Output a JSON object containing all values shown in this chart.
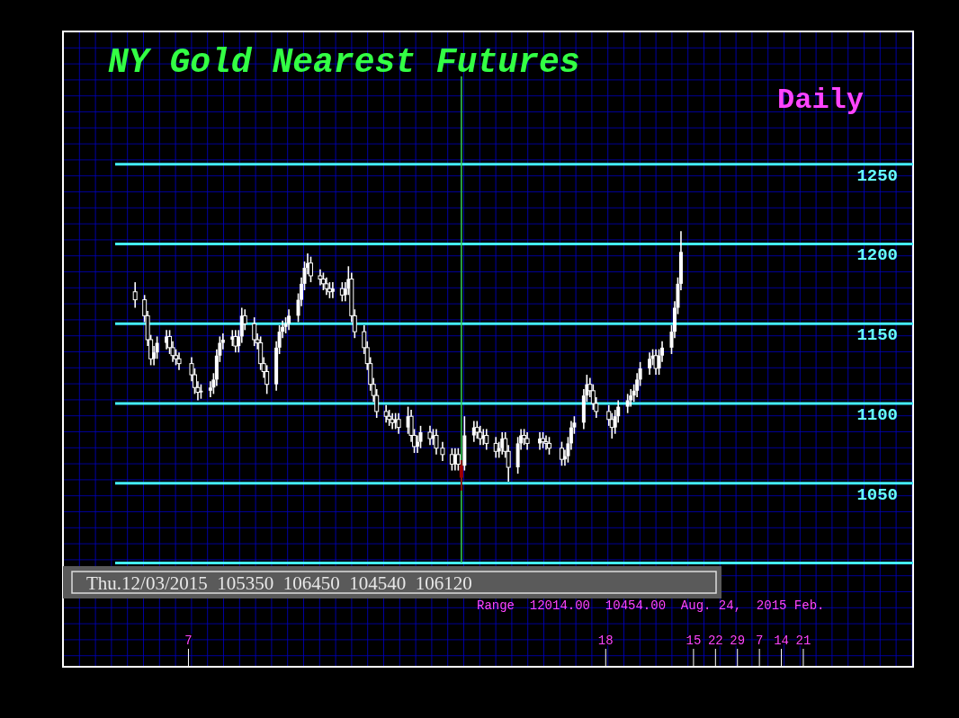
{
  "chart_data": {
    "type": "candlestick",
    "title": "NY Gold Nearest Futures",
    "subtitle": "Daily",
    "x": [
      "2015-08-21",
      "2015-08-24",
      "2015-08-25",
      "2015-08-26",
      "2015-08-27",
      "2015-08-28",
      "2015-08-31",
      "2015-09-01",
      "2015-09-02",
      "2015-09-03",
      "2015-09-04",
      "2015-09-08",
      "2015-09-09",
      "2015-09-10",
      "2015-09-11",
      "2015-09-14",
      "2015-09-15",
      "2015-09-16",
      "2015-09-17",
      "2015-09-18",
      "2015-09-21",
      "2015-09-22",
      "2015-09-23",
      "2015-09-24",
      "2015-09-25",
      "2015-09-28",
      "2015-09-29",
      "2015-09-30",
      "2015-10-01",
      "2015-10-02",
      "2015-10-05",
      "2015-10-06",
      "2015-10-07",
      "2015-10-08",
      "2015-10-09",
      "2015-10-12",
      "2015-10-13",
      "2015-10-14",
      "2015-10-15",
      "2015-10-16",
      "2015-10-19",
      "2015-10-20",
      "2015-10-21",
      "2015-10-22",
      "2015-10-23",
      "2015-10-26",
      "2015-10-27",
      "2015-10-28",
      "2015-10-29",
      "2015-10-30",
      "2015-11-02",
      "2015-11-03",
      "2015-11-04",
      "2015-11-05",
      "2015-11-06",
      "2015-11-09",
      "2015-11-10",
      "2015-11-11",
      "2015-11-12",
      "2015-11-13",
      "2015-11-16",
      "2015-11-17",
      "2015-11-18",
      "2015-11-19",
      "2015-11-20",
      "2015-11-23",
      "2015-11-24",
      "2015-11-25",
      "2015-11-27",
      "2015-11-30",
      "2015-12-01",
      "2015-12-02",
      "2015-12-03",
      "2015-12-04",
      "2015-12-07",
      "2015-12-08",
      "2015-12-09",
      "2015-12-10",
      "2015-12-11",
      "2015-12-14",
      "2015-12-15",
      "2015-12-16",
      "2015-12-17",
      "2015-12-18",
      "2015-12-21",
      "2015-12-22",
      "2015-12-23",
      "2015-12-24",
      "2015-12-28",
      "2015-12-29",
      "2015-12-30",
      "2015-12-31",
      "2016-01-04",
      "2016-01-05",
      "2016-01-06",
      "2016-01-07",
      "2016-01-08",
      "2016-01-11",
      "2016-01-12",
      "2016-01-13",
      "2016-01-14",
      "2016-01-15",
      "2016-01-19",
      "2016-01-20",
      "2016-01-21",
      "2016-01-22",
      "2016-01-25",
      "2016-01-26",
      "2016-01-27",
      "2016-01-28",
      "2016-01-29",
      "2016-02-01",
      "2016-02-02",
      "2016-02-03",
      "2016-02-04",
      "2016-02-05",
      "2016-02-08",
      "2016-02-09",
      "2016-02-10",
      "2016-02-11"
    ],
    "xlim": [
      "2015-07-29",
      "2016-04-25"
    ],
    "xticks": [
      {
        "value": "2015-09-07",
        "label": "7"
      },
      {
        "value": "2016-01-18",
        "label": "18"
      },
      {
        "value": "2016-02-15",
        "label": "15"
      },
      {
        "value": "2016-02-22",
        "label": "22"
      },
      {
        "value": "2016-02-29",
        "label": "29"
      },
      {
        "value": "2016-03-07",
        "label": "7"
      },
      {
        "value": "2016-03-14",
        "label": "14"
      },
      {
        "value": "2016-03-21",
        "label": "21"
      }
    ],
    "ref_lines": [
      {
        "axis": "x",
        "value": "2015-12-03",
        "color": "#33cc55"
      }
    ],
    "ohlc": [
      [
        1170,
        1176,
        1160,
        1165
      ],
      [
        1165,
        1168,
        1151,
        1155
      ],
      [
        1155,
        1158,
        1136,
        1140
      ],
      [
        1140,
        1143,
        1124,
        1128
      ],
      [
        1128,
        1136,
        1124,
        1132
      ],
      [
        1132,
        1142,
        1128,
        1138
      ],
      [
        1138,
        1146,
        1134,
        1142
      ],
      [
        1142,
        1146,
        1131,
        1135
      ],
      [
        1135,
        1139,
        1126,
        1130
      ],
      [
        1130,
        1134,
        1124,
        1128
      ],
      [
        1128,
        1132,
        1121,
        1125
      ],
      [
        1125,
        1129,
        1114,
        1118
      ],
      [
        1118,
        1122,
        1106,
        1110
      ],
      [
        1110,
        1114,
        1102,
        1107
      ],
      [
        1107,
        1112,
        1103,
        1108
      ],
      [
        1108,
        1114,
        1104,
        1110
      ],
      [
        1110,
        1119,
        1106,
        1115
      ],
      [
        1115,
        1134,
        1111,
        1130
      ],
      [
        1130,
        1142,
        1126,
        1138
      ],
      [
        1138,
        1144,
        1134,
        1140
      ],
      [
        1140,
        1146,
        1136,
        1142
      ],
      [
        1142,
        1146,
        1132,
        1136
      ],
      [
        1136,
        1146,
        1132,
        1142
      ],
      [
        1142,
        1160,
        1138,
        1155
      ],
      [
        1155,
        1159,
        1146,
        1150
      ],
      [
        1150,
        1154,
        1136,
        1140
      ],
      [
        1140,
        1144,
        1134,
        1138
      ],
      [
        1138,
        1142,
        1121,
        1125
      ],
      [
        1125,
        1129,
        1116,
        1120
      ],
      [
        1120,
        1124,
        1106,
        1112
      ],
      [
        1112,
        1139,
        1108,
        1135
      ],
      [
        1135,
        1149,
        1131,
        1145
      ],
      [
        1145,
        1152,
        1141,
        1148
      ],
      [
        1148,
        1154,
        1144,
        1150
      ],
      [
        1150,
        1159,
        1146,
        1155
      ],
      [
        1155,
        1169,
        1151,
        1165
      ],
      [
        1165,
        1179,
        1161,
        1175
      ],
      [
        1175,
        1189,
        1171,
        1185
      ],
      [
        1185,
        1194,
        1181,
        1188
      ],
      [
        1188,
        1192,
        1176,
        1180
      ],
      [
        1180,
        1184,
        1174,
        1178
      ],
      [
        1178,
        1182,
        1171,
        1175
      ],
      [
        1175,
        1179,
        1168,
        1172
      ],
      [
        1172,
        1176,
        1166,
        1170
      ],
      [
        1170,
        1176,
        1166,
        1172
      ],
      [
        1172,
        1176,
        1164,
        1168
      ],
      [
        1168,
        1176,
        1164,
        1172
      ],
      [
        1172,
        1186,
        1168,
        1178
      ],
      [
        1178,
        1182,
        1151,
        1155
      ],
      [
        1155,
        1159,
        1141,
        1145
      ],
      [
        1145,
        1149,
        1131,
        1135
      ],
      [
        1135,
        1139,
        1121,
        1125
      ],
      [
        1125,
        1129,
        1108,
        1112
      ],
      [
        1112,
        1116,
        1101,
        1105
      ],
      [
        1105,
        1109,
        1091,
        1095
      ],
      [
        1095,
        1099,
        1088,
        1092
      ],
      [
        1092,
        1096,
        1086,
        1090
      ],
      [
        1090,
        1094,
        1084,
        1088
      ],
      [
        1088,
        1094,
        1084,
        1090
      ],
      [
        1090,
        1094,
        1081,
        1085
      ],
      [
        1085,
        1098,
        1081,
        1092
      ],
      [
        1092,
        1096,
        1076,
        1080
      ],
      [
        1080,
        1084,
        1069,
        1073
      ],
      [
        1073,
        1080,
        1069,
        1076
      ],
      [
        1076,
        1086,
        1072,
        1082
      ],
      [
        1082,
        1086,
        1074,
        1078
      ],
      [
        1078,
        1084,
        1074,
        1080
      ],
      [
        1080,
        1084,
        1068,
        1072
      ],
      [
        1072,
        1076,
        1064,
        1068
      ],
      [
        1068,
        1072,
        1058,
        1062
      ],
      [
        1062,
        1072,
        1058,
        1068
      ],
      [
        1068,
        1072,
        1058,
        1062
      ],
      [
        1053.5,
        1064.5,
        1045.4,
        1061.2
      ],
      [
        1061,
        1092,
        1058,
        1080
      ],
      [
        1080,
        1089,
        1076,
        1085
      ],
      [
        1085,
        1089,
        1078,
        1082
      ],
      [
        1082,
        1086,
        1074,
        1078
      ],
      [
        1078,
        1084,
        1074,
        1080
      ],
      [
        1080,
        1084,
        1071,
        1075
      ],
      [
        1075,
        1079,
        1066,
        1070
      ],
      [
        1070,
        1076,
        1066,
        1072
      ],
      [
        1072,
        1082,
        1068,
        1078
      ],
      [
        1078,
        1082,
        1066,
        1070
      ],
      [
        1070,
        1074,
        1051,
        1060
      ],
      [
        1060,
        1079,
        1056,
        1075
      ],
      [
        1075,
        1084,
        1071,
        1080
      ],
      [
        1080,
        1084,
        1074,
        1078
      ],
      [
        1078,
        1082,
        1071,
        1075
      ],
      [
        1075,
        1082,
        1071,
        1078
      ],
      [
        1078,
        1082,
        1072,
        1076
      ],
      [
        1076,
        1080,
        1071,
        1075
      ],
      [
        1075,
        1079,
        1068,
        1072
      ],
      [
        1072,
        1076,
        1061,
        1065
      ],
      [
        1065,
        1071,
        1061,
        1067
      ],
      [
        1067,
        1079,
        1063,
        1075
      ],
      [
        1075,
        1089,
        1071,
        1085
      ],
      [
        1085,
        1092,
        1081,
        1088
      ],
      [
        1088,
        1109,
        1084,
        1105
      ],
      [
        1105,
        1118,
        1101,
        1112
      ],
      [
        1112,
        1116,
        1104,
        1108
      ],
      [
        1108,
        1112,
        1096,
        1100
      ],
      [
        1100,
        1104,
        1091,
        1095
      ],
      [
        1095,
        1099,
        1086,
        1090
      ],
      [
        1090,
        1094,
        1078,
        1085
      ],
      [
        1085,
        1096,
        1081,
        1092
      ],
      [
        1092,
        1102,
        1088,
        1098
      ],
      [
        1098,
        1106,
        1094,
        1102
      ],
      [
        1102,
        1109,
        1098,
        1105
      ],
      [
        1105,
        1112,
        1101,
        1108
      ],
      [
        1108,
        1119,
        1104,
        1115
      ],
      [
        1115,
        1126,
        1111,
        1122
      ],
      [
        1122,
        1132,
        1118,
        1128
      ],
      [
        1128,
        1134,
        1124,
        1130
      ],
      [
        1130,
        1134,
        1118,
        1122
      ],
      [
        1122,
        1134,
        1118,
        1130
      ],
      [
        1130,
        1139,
        1126,
        1135
      ],
      [
        1135,
        1149,
        1131,
        1145
      ],
      [
        1145,
        1164,
        1141,
        1160
      ],
      [
        1160,
        1179,
        1156,
        1175
      ],
      [
        1175,
        1208,
        1171,
        1195
      ]
    ],
    "colors": [
      "#ffffff",
      "#ffffff",
      "#ffffff",
      "#ffffff",
      "#ffffff",
      "#ffffff",
      "#ffffff",
      "#ffffff",
      "#ffffff",
      "#ffffff",
      "#ffffff",
      "#ffffff",
      "#ffffff",
      "#ffffff",
      "#ffffff",
      "#ffffff",
      "#ffffff",
      "#ffffff",
      "#ffffff",
      "#ffffff",
      "#ffffff",
      "#ffffff",
      "#ffffff",
      "#ffffff",
      "#ffffff",
      "#ffffff",
      "#ffffff",
      "#ffffff",
      "#ffffff",
      "#ffffff",
      "#ffffff",
      "#ffffff",
      "#ffffff",
      "#ffffff",
      "#ffffff",
      "#ffffff",
      "#ffffff",
      "#ffffff",
      "#ffffff",
      "#ffffff",
      "#ffffff",
      "#ffffff",
      "#ffffff",
      "#ffffff",
      "#ffffff",
      "#ffffff",
      "#ffffff",
      "#ffffff",
      "#ffffff",
      "#ffffff",
      "#ffffff",
      "#ffffff",
      "#ffffff",
      "#ffffff",
      "#ffffff",
      "#ffffff",
      "#ffffff",
      "#ffffff",
      "#ffffff",
      "#ffffff",
      "#ffffff",
      "#ffffff",
      "#ffffff",
      "#ffffff",
      "#ffffff",
      "#ffffff",
      "#ffffff",
      "#ffffff",
      "#ffffff",
      "#ffffff",
      "#ffffff",
      "#ffffff",
      "#a00000",
      "#ffffff",
      "#ffffff",
      "#ffffff",
      "#ffffff",
      "#ffffff",
      "#ffffff",
      "#ffffff",
      "#ffffff",
      "#ffffff",
      "#ffffff",
      "#ffffff",
      "#ffffff",
      "#ffffff",
      "#ffffff",
      "#ffffff",
      "#ffffff",
      "#ffffff",
      "#ffffff",
      "#ffffff",
      "#ffffff",
      "#ffffff",
      "#ffffff",
      "#ffffff",
      "#ffffff",
      "#ffffff",
      "#ffffff",
      "#ffffff",
      "#ffffff",
      "#ffffff",
      "#ffffff",
      "#ffffff",
      "#ffffff",
      "#ffffff",
      "#ffffff",
      "#ffffff",
      "#ffffff",
      "#ffffff",
      "#ffffff",
      "#ffffff",
      "#ffffff",
      "#ffffff",
      "#ffffff",
      "#ffffff",
      "#ffffff",
      "#ffffff",
      "#ffffff",
      "#ffffff"
    ],
    "ylim": [
      935,
      1305
    ],
    "yticks": [
      {
        "value": 1000,
        "label": null
      },
      1050,
      1100,
      1150,
      1200,
      1250
    ],
    "grid": "y",
    "annotations": [
      "Thu.12/03/2015  105350  106450  104540  106120",
      "Range  12014.00  10454.00  Aug. 24,  2015 Feb."
    ]
  }
}
